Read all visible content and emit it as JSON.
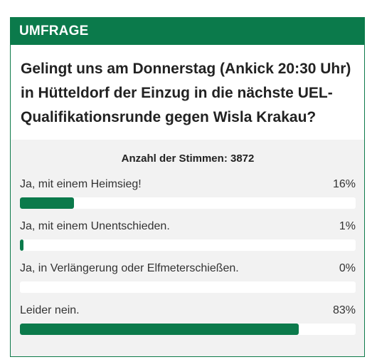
{
  "poll": {
    "header": "UMFRAGE",
    "question": "Gelingt uns am Donnerstag (Ankick 20:30 Uhr) in Hütteldorf der Einzug in die nächste UEL-Qualifikationsrunde gegen Wisla Krakau?",
    "votes_text": "Anzahl der Stimmen: 3872",
    "options": [
      {
        "label": "Ja, mit einem Heimsieg!",
        "percent_text": "16%",
        "percent": 16
      },
      {
        "label": "Ja, mit einem Unentschieden.",
        "percent_text": "1%",
        "percent": 1
      },
      {
        "label": "Ja, in Verlängerung oder Elfmeterschießen.",
        "percent_text": "0%",
        "percent": 0
      },
      {
        "label": "Leider nein.",
        "percent_text": "83%",
        "percent": 83
      }
    ]
  },
  "colors": {
    "accent": "#0b7a4b",
    "track": "#ffffff",
    "panel_bg": "#f2f2f2"
  }
}
